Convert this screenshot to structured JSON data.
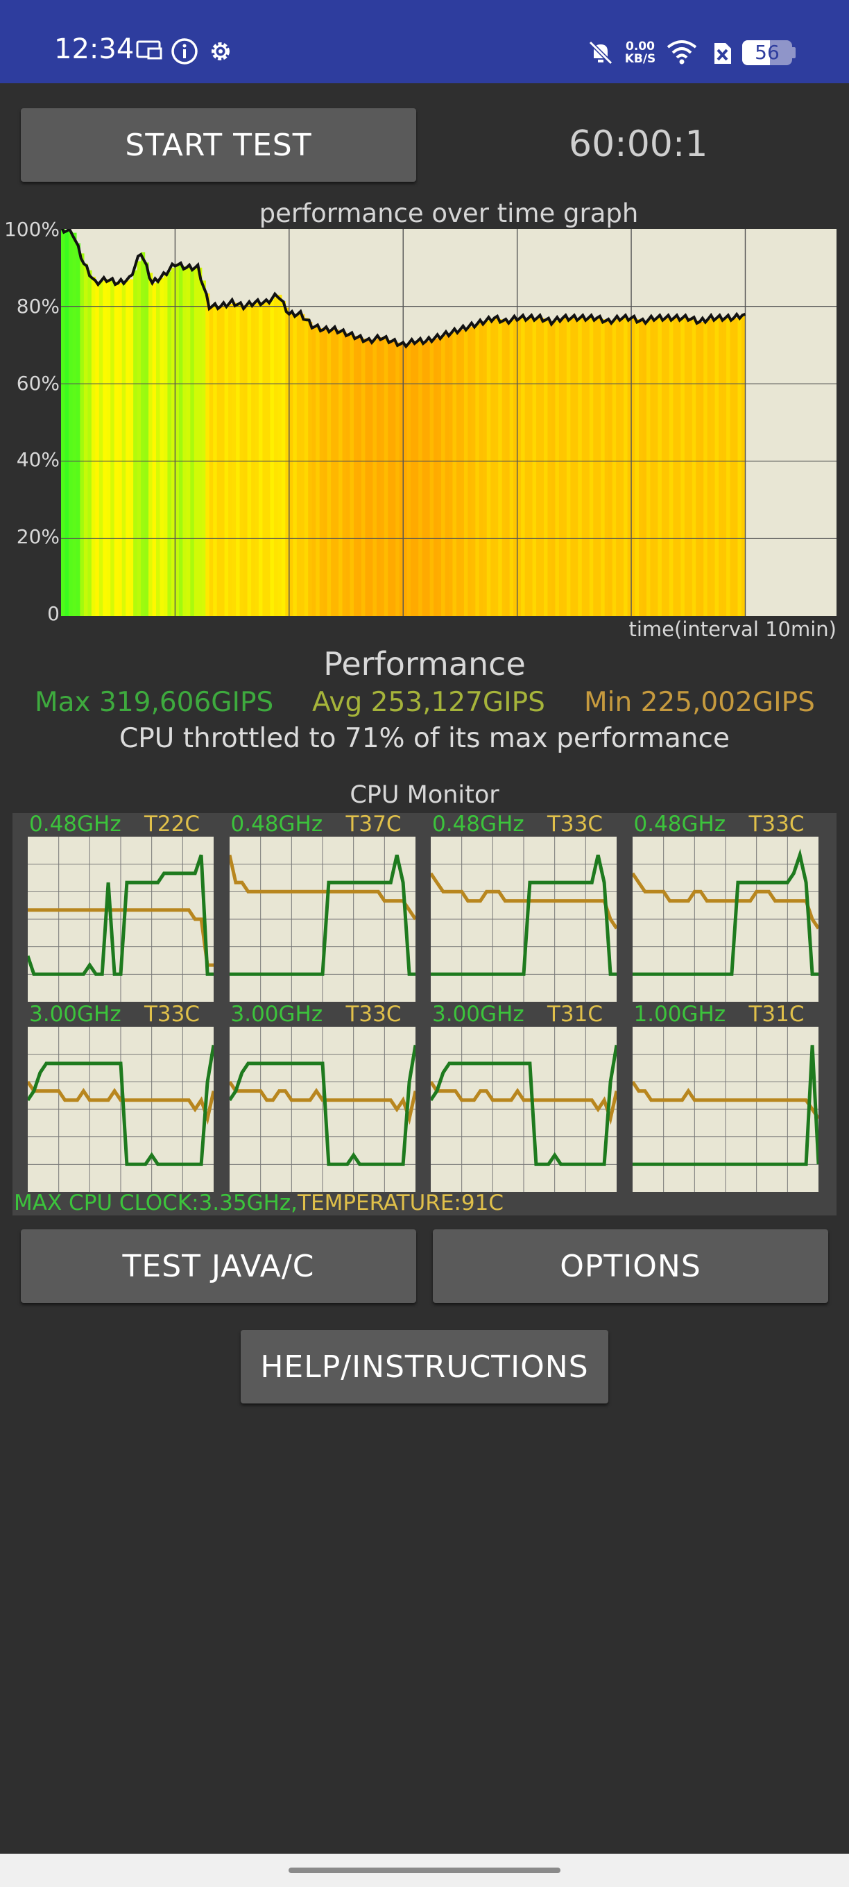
{
  "status_bar": {
    "time": "12:34",
    "net_speed_top": "0.00",
    "net_speed_bottom": "KB/S",
    "battery": "56",
    "icons": [
      "cast-icon",
      "info-icon",
      "settings-gear-icon",
      "bell-off-icon",
      "wifi-icon",
      "sim-off-icon",
      "battery-icon"
    ]
  },
  "controls": {
    "start_test": "START TEST",
    "timer": "60:00:1"
  },
  "graph": {
    "title": "performance over time graph",
    "x_label": "time(interval 10min)",
    "y_ticks": [
      "100%",
      "80%",
      "60%",
      "40%",
      "20%",
      "0"
    ]
  },
  "chart_data": {
    "type": "line",
    "title": "performance over time graph",
    "xlabel": "time(interval 10min)",
    "ylabel": "",
    "ylim": [
      0,
      100
    ],
    "x_unit": "minutes",
    "x_range": [
      0,
      68
    ],
    "grid": true,
    "x": [
      0,
      1,
      2,
      3,
      4,
      5,
      6,
      7,
      8,
      9,
      10,
      11,
      12,
      13,
      14,
      15,
      16,
      17,
      18,
      19,
      20,
      21,
      22,
      23,
      24,
      25,
      26,
      27,
      28,
      29,
      30,
      31,
      32,
      33,
      34,
      35,
      36,
      37,
      38,
      39,
      40,
      41,
      42,
      43,
      44,
      45,
      46,
      47,
      48,
      49,
      50,
      51,
      52,
      53,
      54,
      55,
      56,
      57,
      58,
      59,
      60
    ],
    "values": [
      100,
      99,
      91,
      86,
      87,
      86,
      87,
      94,
      86,
      88,
      91,
      90,
      90,
      80,
      80,
      81,
      80,
      81,
      81,
      83,
      78,
      78,
      75,
      74,
      74,
      73,
      72,
      71,
      72,
      71,
      70,
      71,
      71,
      72,
      73,
      74,
      75,
      76,
      77,
      76,
      77,
      77,
      77,
      76,
      77,
      77,
      77,
      77,
      76,
      77,
      77,
      76,
      77,
      77,
      77,
      77,
      76,
      77,
      77,
      77,
      78
    ]
  },
  "performance": {
    "title": "Performance",
    "max": "Max 319,606GIPS",
    "avg": "Avg 253,127GIPS",
    "min": "Min 225,002GIPS",
    "throttle": "CPU throttled to 71% of its max performance",
    "colors": {
      "max": "#3eaa3e",
      "avg": "#a6b43a",
      "min": "#c69a3e"
    }
  },
  "cpu_monitor": {
    "title": "CPU Monitor",
    "cores": [
      {
        "freq": "0.48GHz",
        "temp": "T22C"
      },
      {
        "freq": "0.48GHz",
        "temp": "T37C"
      },
      {
        "freq": "0.48GHz",
        "temp": "T33C"
      },
      {
        "freq": "0.48GHz",
        "temp": "T33C"
      },
      {
        "freq": "3.00GHz",
        "temp": "T33C"
      },
      {
        "freq": "3.00GHz",
        "temp": "T33C"
      },
      {
        "freq": "3.00GHz",
        "temp": "T31C"
      },
      {
        "freq": "1.00GHz",
        "temp": "T31C"
      }
    ],
    "max_clock": "MAX CPU CLOCK:3.35GHz,",
    "temperature": "TEMPERATURE:91C",
    "colors": {
      "freq_line": "#1e7a1e",
      "temp_line": "#b8861e"
    }
  },
  "buttons": {
    "test_java_c": "TEST JAVA/C",
    "options": "OPTIONS",
    "help": "HELP/INSTRUCTIONS"
  }
}
